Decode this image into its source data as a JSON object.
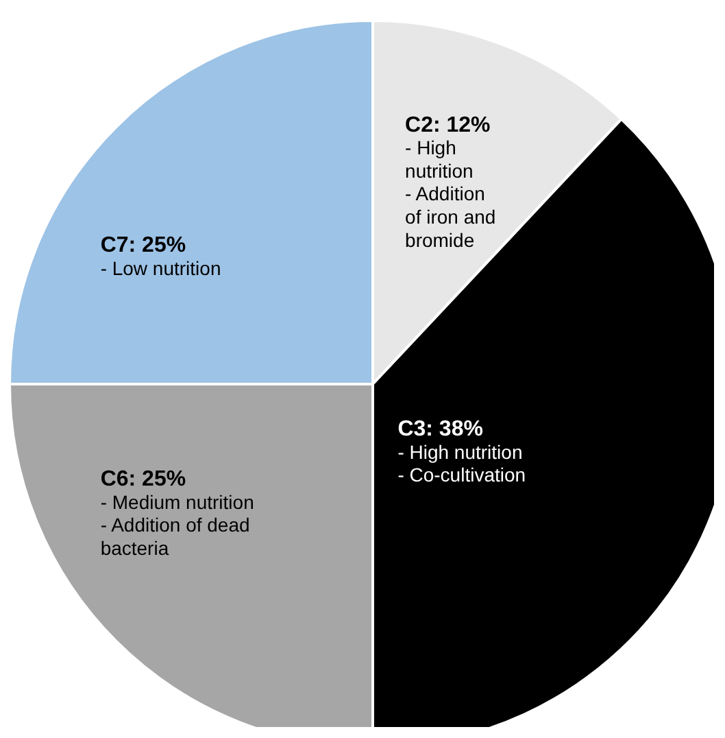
{
  "chart_data": {
    "type": "pie",
    "categories": [
      "C2",
      "C3",
      "C6",
      "C7"
    ],
    "values": [
      12,
      38,
      25,
      25
    ],
    "colors": [
      "#e7e7e7",
      "#000000",
      "#a6a6a6",
      "#9dc3e6"
    ],
    "value_labels": [
      "12%",
      "38%",
      "25%",
      "25%"
    ],
    "annotations": [
      "- High nutrition\n- Addition of iron and bromide",
      "- High nutrition\n- Co-cultivation",
      "- Medium nutrition\n- Addition of dead bacteria",
      "- Low nutrition"
    ]
  }
}
